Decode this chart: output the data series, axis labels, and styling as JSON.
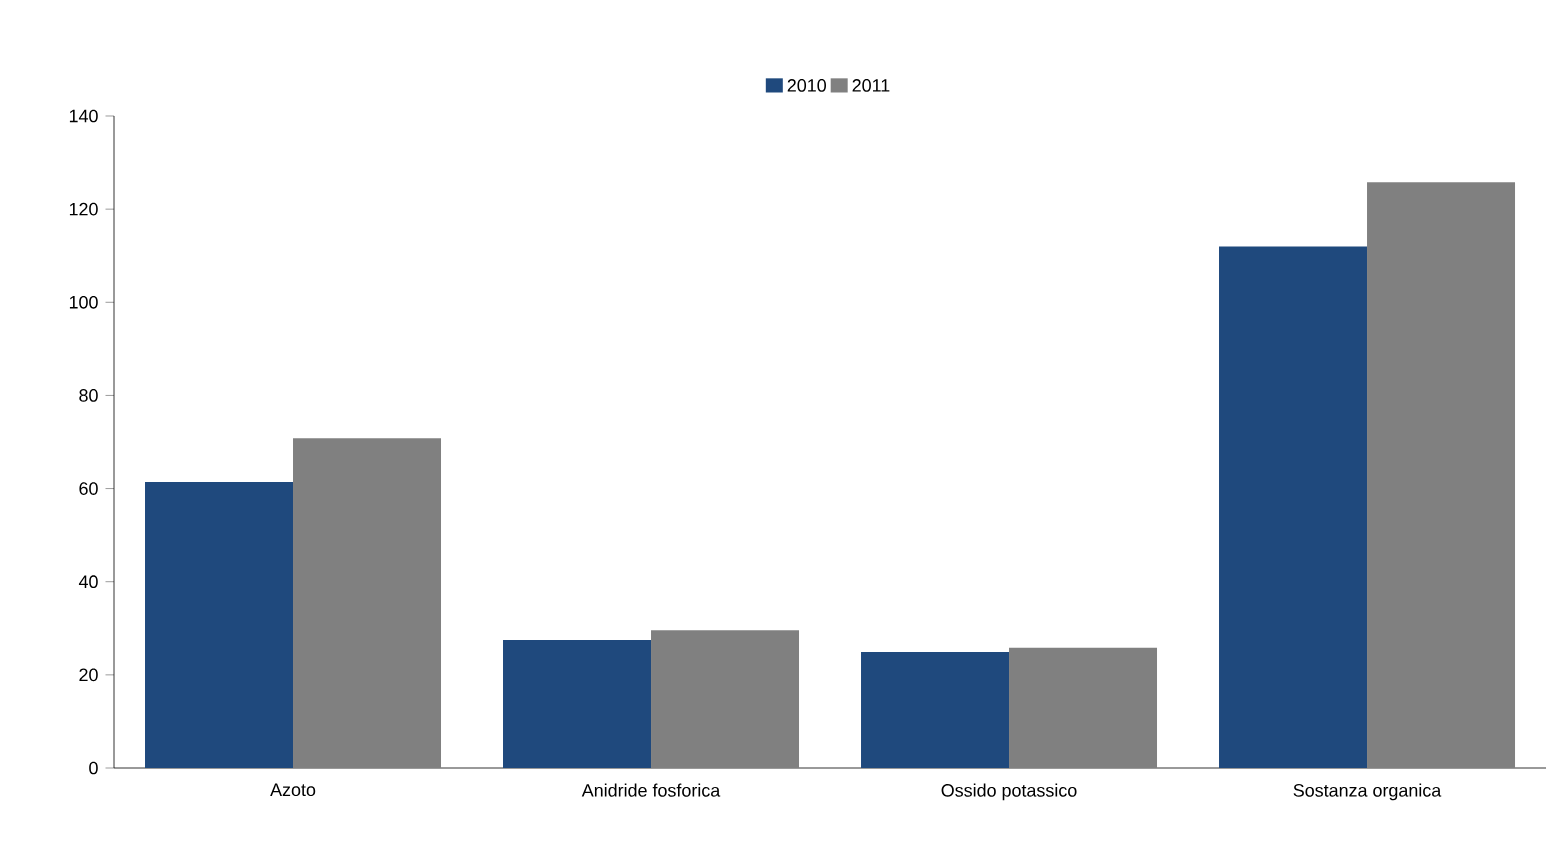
{
  "chart_data": {
    "type": "bar",
    "categories": [
      "Azoto",
      "Anidride fosforica",
      "Ossido potassico",
      "Sostanza organica"
    ],
    "series": [
      {
        "name": "2010",
        "color": "#1f497d",
        "values": [
          61.4,
          27.5,
          24.9,
          112
        ]
      },
      {
        "name": "2011",
        "color": "#808080",
        "values": [
          70.8,
          29.6,
          25.8,
          125.8
        ]
      }
    ],
    "ylim": [
      0,
      140
    ],
    "yticks": [
      0,
      20,
      40,
      60,
      80,
      100,
      120,
      140
    ],
    "grid": false,
    "legend": "top"
  }
}
